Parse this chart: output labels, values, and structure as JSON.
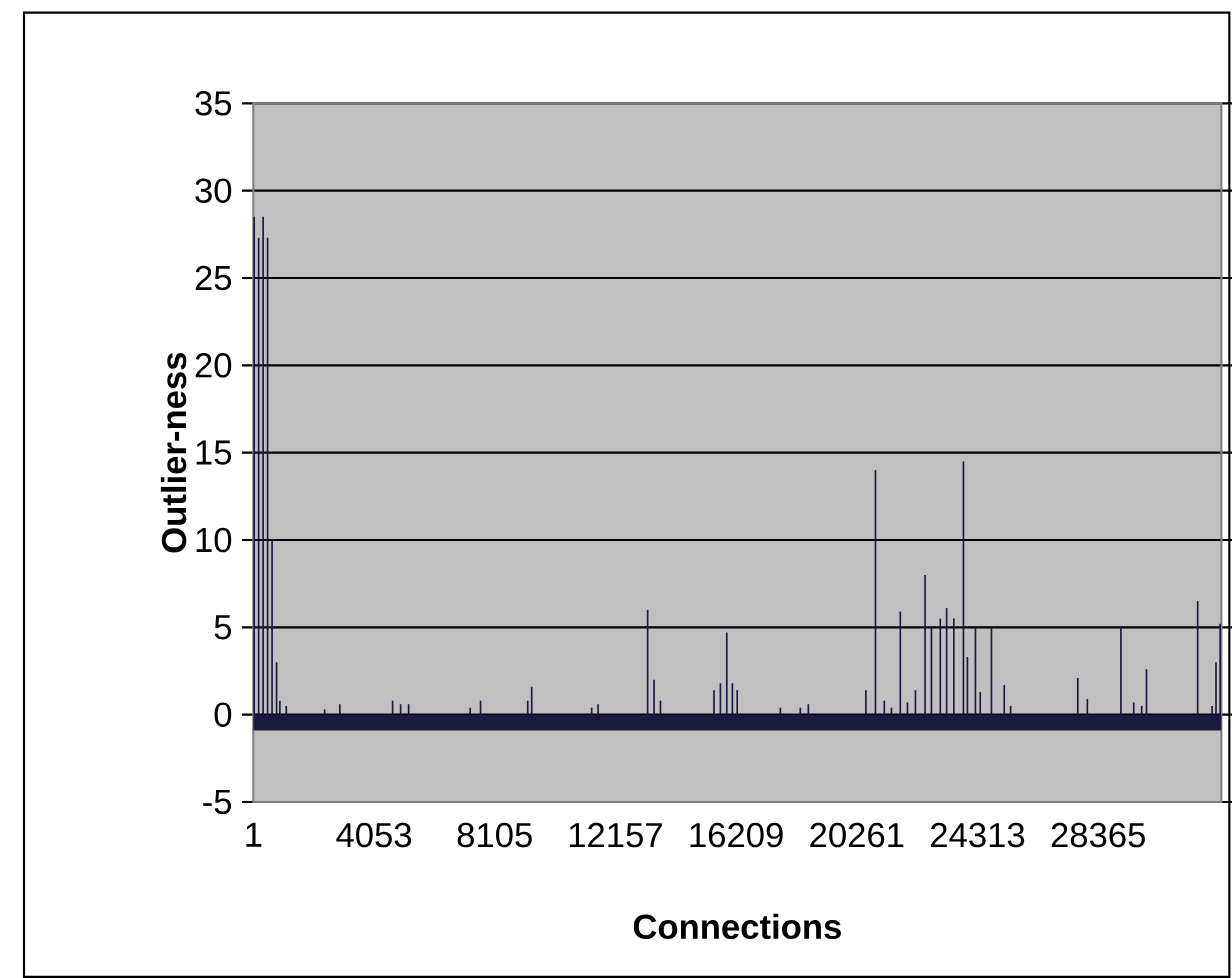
{
  "chart_data": {
    "type": "bar",
    "xlabel": "Connections",
    "ylabel": "Outlier-ness",
    "xlim": [
      1,
      32500
    ],
    "ylim": [
      -5,
      35
    ],
    "xticks": [
      1,
      4053,
      8105,
      12157,
      16209,
      20261,
      24313,
      28365
    ],
    "yticks": [
      -5,
      0,
      5,
      10,
      15,
      20,
      25,
      30,
      35
    ],
    "grid": "y",
    "series": [
      {
        "color": "#1a1a40",
        "x": [
          30,
          180,
          330,
          480,
          630,
          780,
          892,
          1107,
          2395,
          2905,
          4677,
          4945,
          5214,
          7280,
          7629,
          9213,
          9347,
          11360,
          11575,
          13239,
          13454,
          13669,
          15467,
          15682,
          15896,
          16084,
          16245,
          17694,
          18365,
          18634,
          20566,
          20888,
          21183,
          21425,
          21720,
          21962,
          22230,
          22553,
          22767,
          23063,
          23277,
          23519,
          23841,
          23975,
          24244,
          24405,
          24781,
          25210,
          25425,
          27679,
          28001,
          29128,
          29558,
          29826,
          29987,
          31705,
          32189,
          32320,
          32460
        ],
        "values": [
          28.5,
          27.3,
          28.5,
          27.3,
          10,
          3,
          0.8,
          0.5,
          0.3,
          0.6,
          0.8,
          0.6,
          0.6,
          0.4,
          0.8,
          0.8,
          1.6,
          0.4,
          0.6,
          6,
          2,
          0.8,
          1.4,
          1.8,
          4.7,
          1.8,
          1.4,
          0.4,
          0.4,
          0.6,
          1.4,
          14,
          0.8,
          0.4,
          5.9,
          0.7,
          1.4,
          8,
          5,
          5.5,
          6.1,
          5.5,
          14.5,
          3.3,
          5,
          1.3,
          5,
          1.7,
          0.5,
          2.1,
          0.9,
          5,
          0.7,
          0.5,
          2.6,
          6.5,
          0.5,
          3,
          5.2
        ]
      },
      {
        "type": "area",
        "color": "#1a1a40",
        "x": [
          1,
          32500
        ],
        "values": [
          -0.9,
          -0.9
        ]
      }
    ]
  }
}
